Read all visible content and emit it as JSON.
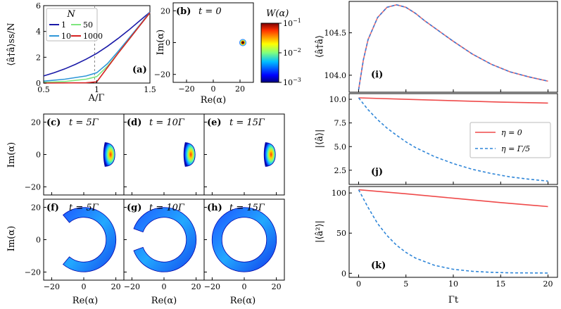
{
  "colors": {
    "n1": "#1a1aa8",
    "n10": "#2f97d8",
    "n50": "#7ee67e",
    "n1000": "#d62222",
    "eta0": "#ef4a4a",
    "eta_g5": "#2f86d8",
    "i_series_a": "#ef6a6a",
    "i_series_b": "#3a7ad8"
  },
  "labels": {
    "a_ylabel": "⟨â†â⟩ss/N",
    "a_xlabel": "A/Γ",
    "a_legend_title": "N",
    "a_panel": "(a)",
    "b_panel": "(b)",
    "b_title": "t = 0",
    "c_panel": "(c)",
    "c_title": "t = 5Γ",
    "d_panel": "(d)",
    "d_title": "t = 10Γ",
    "e_panel": "(e)",
    "e_title": "t = 15Γ",
    "f_panel": "(f)",
    "f_title": "t = 5Γ",
    "g_panel": "(g)",
    "g_title": "t = 10Γ",
    "h_panel": "(h)",
    "h_title": "t = 15Γ",
    "im_label": "Im(α)",
    "re_label": "Re(α)",
    "colorbar_label": "W(α)",
    "i_panel": "(i)",
    "i_ylabel": "⟨â†â⟩",
    "j_panel": "(j)",
    "j_ylabel": "|⟨â⟩|",
    "k_panel": "(k)",
    "k_ylabel": "|⟨â²⟩|",
    "right_xlabel": "Γt"
  },
  "chart_data": [
    {
      "id": "a",
      "type": "line",
      "xlabel": "A/Γ",
      "ylabel": "⟨â†â⟩ss/N",
      "xlim": [
        0.5,
        1.5
      ],
      "ylim": [
        0,
        6
      ],
      "xticks": [
        "0.5",
        "1",
        "1.5"
      ],
      "yticks": [
        "0",
        "2",
        "4",
        "6"
      ],
      "legend_title": "N",
      "series": [
        {
          "name": "1",
          "x": [
            0.5,
            0.6,
            0.7,
            0.8,
            0.9,
            1.0,
            1.1,
            1.2,
            1.3,
            1.4,
            1.5
          ],
          "y": [
            0.55,
            0.8,
            1.1,
            1.45,
            1.85,
            2.3,
            2.85,
            3.45,
            4.1,
            4.8,
            5.5
          ]
        },
        {
          "name": "10",
          "x": [
            0.5,
            0.7,
            0.9,
            1.0,
            1.1,
            1.2,
            1.3,
            1.4,
            1.5
          ],
          "y": [
            0.15,
            0.3,
            0.55,
            0.8,
            1.5,
            2.45,
            3.45,
            4.45,
            5.5
          ]
        },
        {
          "name": "50",
          "x": [
            0.5,
            0.7,
            0.9,
            1.0,
            1.1,
            1.2,
            1.3,
            1.4,
            1.5
          ],
          "y": [
            0.05,
            0.12,
            0.3,
            0.5,
            1.3,
            2.3,
            3.35,
            4.4,
            5.45
          ]
        },
        {
          "name": "1000",
          "x": [
            0.5,
            0.9,
            1.0,
            1.1,
            1.2,
            1.3,
            1.4,
            1.5
          ],
          "y": [
            0.0,
            0.02,
            0.1,
            1.2,
            2.3,
            3.35,
            4.4,
            5.45
          ]
        }
      ]
    },
    {
      "id": "b",
      "type": "heatmap",
      "title": "t = 0",
      "xlabel": "Re(α)",
      "ylabel": "Im(α)",
      "xlim": [
        -30,
        30
      ],
      "ylim": [
        -25,
        25
      ],
      "xticks": [
        "−20",
        "0",
        "20"
      ],
      "yticks": [
        "−20",
        "0",
        "20"
      ],
      "blob": {
        "center": [
          16.5,
          0
        ],
        "radius": 2
      },
      "colorbar": {
        "label": "W(α)",
        "scale": "log",
        "range": [
          0.001,
          0.1
        ],
        "ticks": [
          "10−1",
          "10−2",
          "10−3"
        ]
      }
    },
    {
      "id": "c",
      "type": "heatmap",
      "title": "t = 5Γ",
      "xlim": [
        -25,
        25
      ],
      "ylim": [
        -25,
        25
      ],
      "shape": "crescent",
      "center_x": 15
    },
    {
      "id": "d",
      "type": "heatmap",
      "title": "t = 10Γ",
      "xlim": [
        -25,
        25
      ],
      "ylim": [
        -25,
        25
      ],
      "shape": "crescent",
      "center_x": 15
    },
    {
      "id": "e",
      "type": "heatmap",
      "title": "t = 15Γ",
      "xlim": [
        -25,
        25
      ],
      "ylim": [
        -25,
        25
      ],
      "shape": "crescent",
      "center_x": 15
    },
    {
      "id": "f",
      "type": "heatmap",
      "title": "t = 5Γ",
      "xlim": [
        -25,
        25
      ],
      "ylim": [
        -25,
        25
      ],
      "shape": "ring",
      "ring_radius": 17,
      "arc_span_deg": 260
    },
    {
      "id": "g",
      "type": "heatmap",
      "title": "t = 10Γ",
      "xlim": [
        -25,
        25
      ],
      "ylim": [
        -25,
        25
      ],
      "shape": "ring",
      "ring_radius": 17,
      "arc_span_deg": 320
    },
    {
      "id": "h",
      "type": "heatmap",
      "title": "t = 15Γ",
      "xlim": [
        -25,
        25
      ],
      "ylim": [
        -25,
        25
      ],
      "shape": "ring",
      "ring_radius": 17,
      "arc_span_deg": 360
    },
    {
      "id": "i",
      "type": "line",
      "ylabel": "⟨â†â⟩",
      "xlim": [
        -1,
        21
      ],
      "ylim": [
        103.8,
        104.87
      ],
      "yticks": [
        "104.0",
        "104.5"
      ],
      "series": [
        {
          "x": [
            0.0,
            0.5,
            1.0,
            2.0,
            3.0,
            4.0,
            5.0,
            6.0,
            7.0,
            8.0,
            10.0,
            12.0,
            14.0,
            16.0,
            18.0,
            20.0
          ],
          "y": [
            103.83,
            104.18,
            104.42,
            104.68,
            104.8,
            104.83,
            104.8,
            104.73,
            104.64,
            104.56,
            104.4,
            104.25,
            104.13,
            104.04,
            103.98,
            103.93
          ]
        }
      ]
    },
    {
      "id": "j",
      "type": "line",
      "ylabel": "|⟨â⟩|",
      "xlim": [
        -1,
        21
      ],
      "ylim": [
        1.0,
        10.6
      ],
      "yticks": [
        "2.5",
        "5.0",
        "7.5",
        "10.0"
      ],
      "series": [
        {
          "name": "η = 0",
          "x": [
            0,
            5,
            10,
            15,
            20
          ],
          "y": [
            10.15,
            10.0,
            9.85,
            9.7,
            9.6
          ]
        },
        {
          "name": "η = Γ/5",
          "x": [
            0,
            1,
            2,
            3,
            4,
            5,
            6,
            8,
            10,
            12,
            14,
            16,
            18,
            20
          ],
          "y": [
            10.15,
            8.9,
            7.85,
            6.95,
            6.2,
            5.5,
            4.9,
            3.95,
            3.2,
            2.6,
            2.15,
            1.8,
            1.55,
            1.35
          ]
        }
      ]
    },
    {
      "id": "k",
      "type": "line",
      "xlabel": "Γt",
      "ylabel": "|⟨â²⟩|",
      "xlim": [
        -1,
        21
      ],
      "ylim": [
        -5,
        108
      ],
      "xticks": [
        "0",
        "5",
        "10",
        "15",
        "20"
      ],
      "yticks": [
        "0",
        "50",
        "100"
      ],
      "series": [
        {
          "name": "η = 0",
          "x": [
            0,
            5,
            10,
            15,
            20
          ],
          "y": [
            104,
            99,
            93.5,
            88,
            83
          ]
        },
        {
          "name": "η = Γ/5",
          "x": [
            0,
            1,
            2,
            3,
            4,
            5,
            6,
            8,
            10,
            12,
            14,
            16,
            20
          ],
          "y": [
            104,
            82,
            62,
            47,
            35,
            26,
            19,
            10,
            5,
            2.5,
            1.2,
            0.6,
            0.3
          ]
        }
      ]
    }
  ]
}
